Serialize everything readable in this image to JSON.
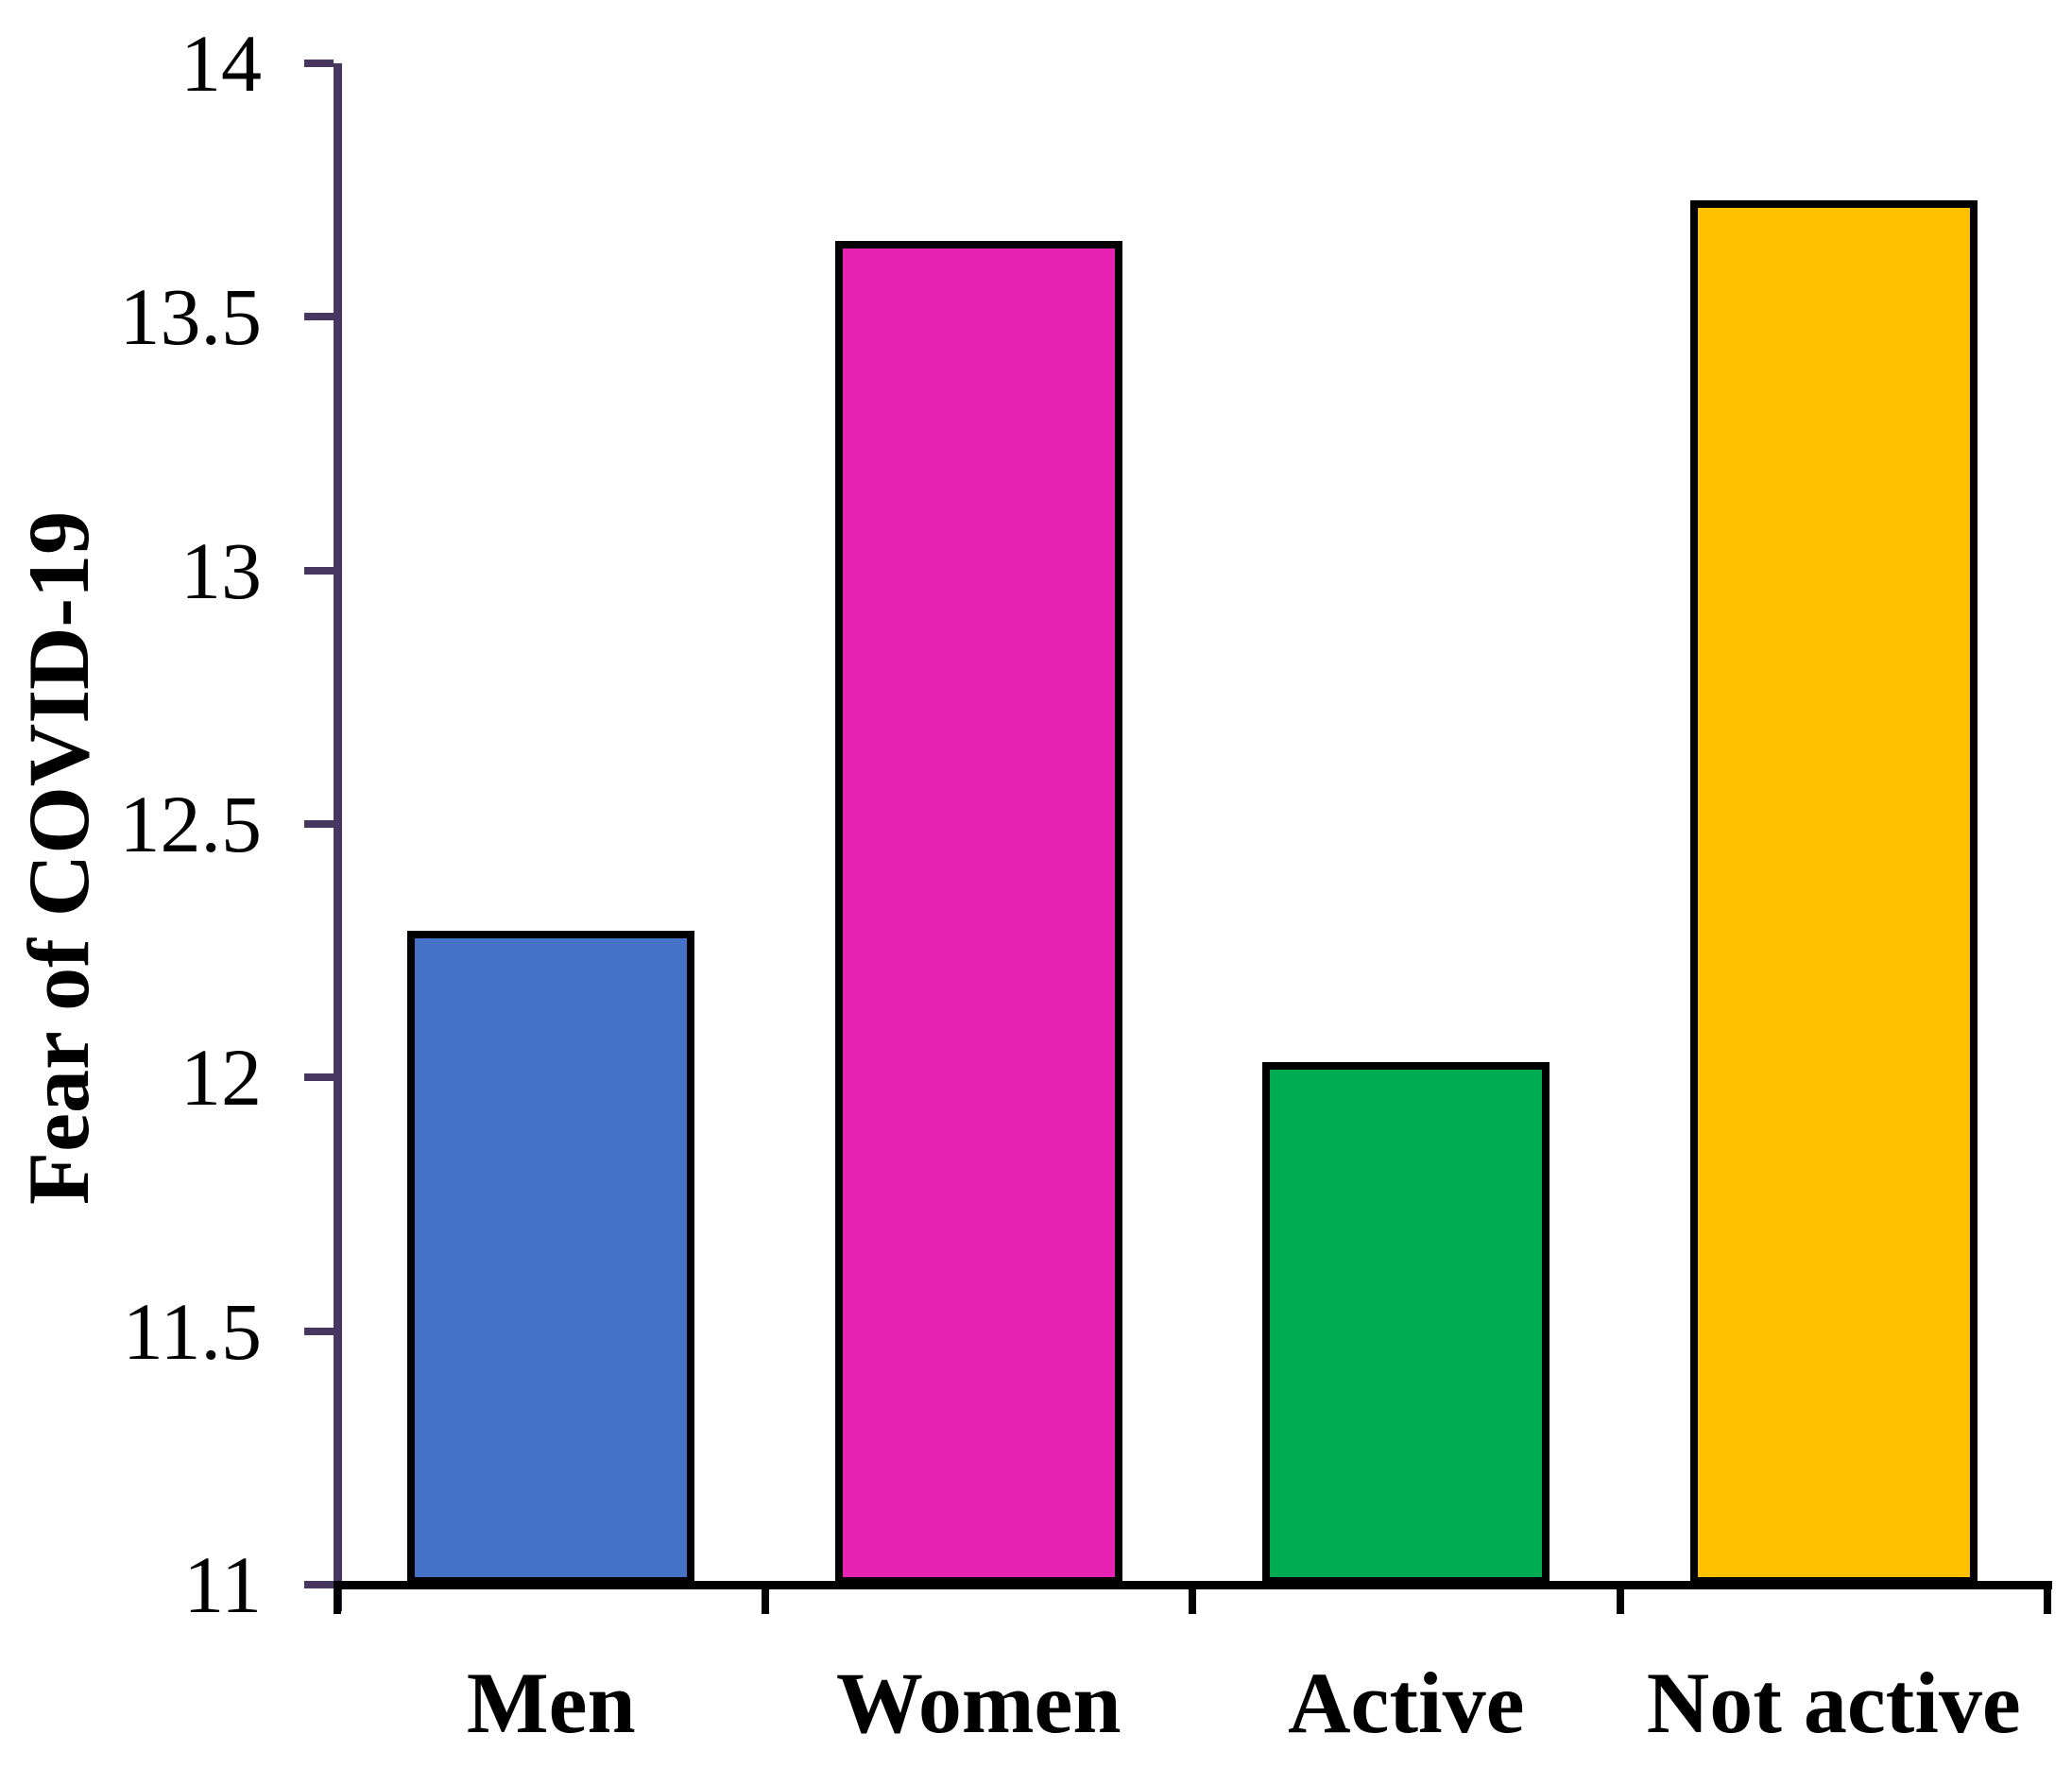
{
  "chart_data": {
    "type": "bar",
    "title": "",
    "categories": [
      "Men",
      "Women",
      "Active",
      "Not active"
    ],
    "values": [
      12.29,
      13.65,
      12.03,
      13.73
    ],
    "bar_colors": [
      "#4472C7",
      "#E522B1",
      "#00AC52",
      "#FFC000"
    ],
    "ylabel": "Fear of COVID-19",
    "xlabel": "",
    "ylim": [
      11,
      14
    ],
    "yticks": [
      14,
      13.5,
      13,
      12.5,
      12,
      11.5,
      11
    ],
    "ytick_labels": [
      "14",
      "13.5",
      "13",
      "12.5",
      "12",
      "11.5",
      "11"
    ],
    "grid": false,
    "legend": false,
    "axis_color": "#463660",
    "baseline_color": "#000000",
    "text_color": "#000000",
    "background": "#FFFFFF"
  }
}
